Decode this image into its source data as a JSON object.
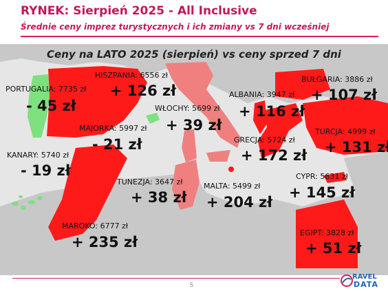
{
  "header": {
    "title": "RYNEK: Sierpień 2025 - All Inclusive",
    "subtitle": "Średnie ceny imprez turystycznych i ich zmiany vs 7 dni wcześniej"
  },
  "colors": {
    "accent": "#c2185b",
    "increase": "#ff1a1a",
    "increase_light": "#f08080",
    "decrease": "#7fe07f",
    "land": "#c8c8c8",
    "sea": "#e6e6e6"
  },
  "chart_data": {
    "type": "map",
    "title": "Ceny na LATO 2025 (sierpień) vs ceny sprzed 7 dni",
    "unit": "zł",
    "destinations": [
      {
        "name": "PORTUGALIA",
        "price_label": "PORTUGALIA: 7735 zł",
        "price": 7735,
        "change_label": "- 45 zł",
        "change": -45
      },
      {
        "name": "HISZPANIA",
        "price_label": "HISZPANIA: 6556 zł",
        "price": 6556,
        "change_label": "+ 126 zł",
        "change": 126
      },
      {
        "name": "WŁOCHY",
        "price_label": "WŁOCHY: 5699 zł",
        "price": 5699,
        "change_label": "+ 39 zł",
        "change": 39
      },
      {
        "name": "MAJORKA",
        "price_label": "MAJORKA: 5997 zł",
        "price": 5997,
        "change_label": "- 21 zł",
        "change": -21
      },
      {
        "name": "KANARY",
        "price_label": "KANARY: 5740 zł",
        "price": 5740,
        "change_label": "- 19 zł",
        "change": -19
      },
      {
        "name": "ALBANIA",
        "price_label": "ALBANIA: 3947 zł",
        "price": 3947,
        "change_label": "+ 116 zł",
        "change": 116
      },
      {
        "name": "BUŁGARIA",
        "price_label": "BUŁGARIA: 3886 zł",
        "price": 3886,
        "change_label": "+ 107 zł",
        "change": 107
      },
      {
        "name": "TURCJA",
        "price_label": "TURCJA: 4999 zł",
        "price": 4999,
        "change_label": "+ 131 zł",
        "change": 131
      },
      {
        "name": "GRECJA",
        "price_label": "GRECJA: 5724 zł",
        "price": 5724,
        "change_label": "+ 172 zł",
        "change": 172
      },
      {
        "name": "TUNEZJA",
        "price_label": "TUNEZJA: 3647 zł",
        "price": 3647,
        "change_label": "+ 38 zł",
        "change": 38
      },
      {
        "name": "MALTA",
        "price_label": "MALTA: 5499 zł",
        "price": 5499,
        "change_label": "+ 204 zł",
        "change": 204
      },
      {
        "name": "CYPR",
        "price_label": "CYPR: 5631 zł",
        "price": 5631,
        "change_label": "+ 145 zł",
        "change": 145
      },
      {
        "name": "MAROKO",
        "price_label": "MAROKO: 6777 zł",
        "price": 6777,
        "change_label": "+ 235 zł",
        "change": 235
      },
      {
        "name": "EGIPT",
        "price_label": "EGIPT: 3828 zł",
        "price": 3828,
        "change_label": "+ 51 zł",
        "change": 51
      }
    ]
  },
  "footer": {
    "page_number": "5",
    "logo": "TRAVEL DATA"
  }
}
